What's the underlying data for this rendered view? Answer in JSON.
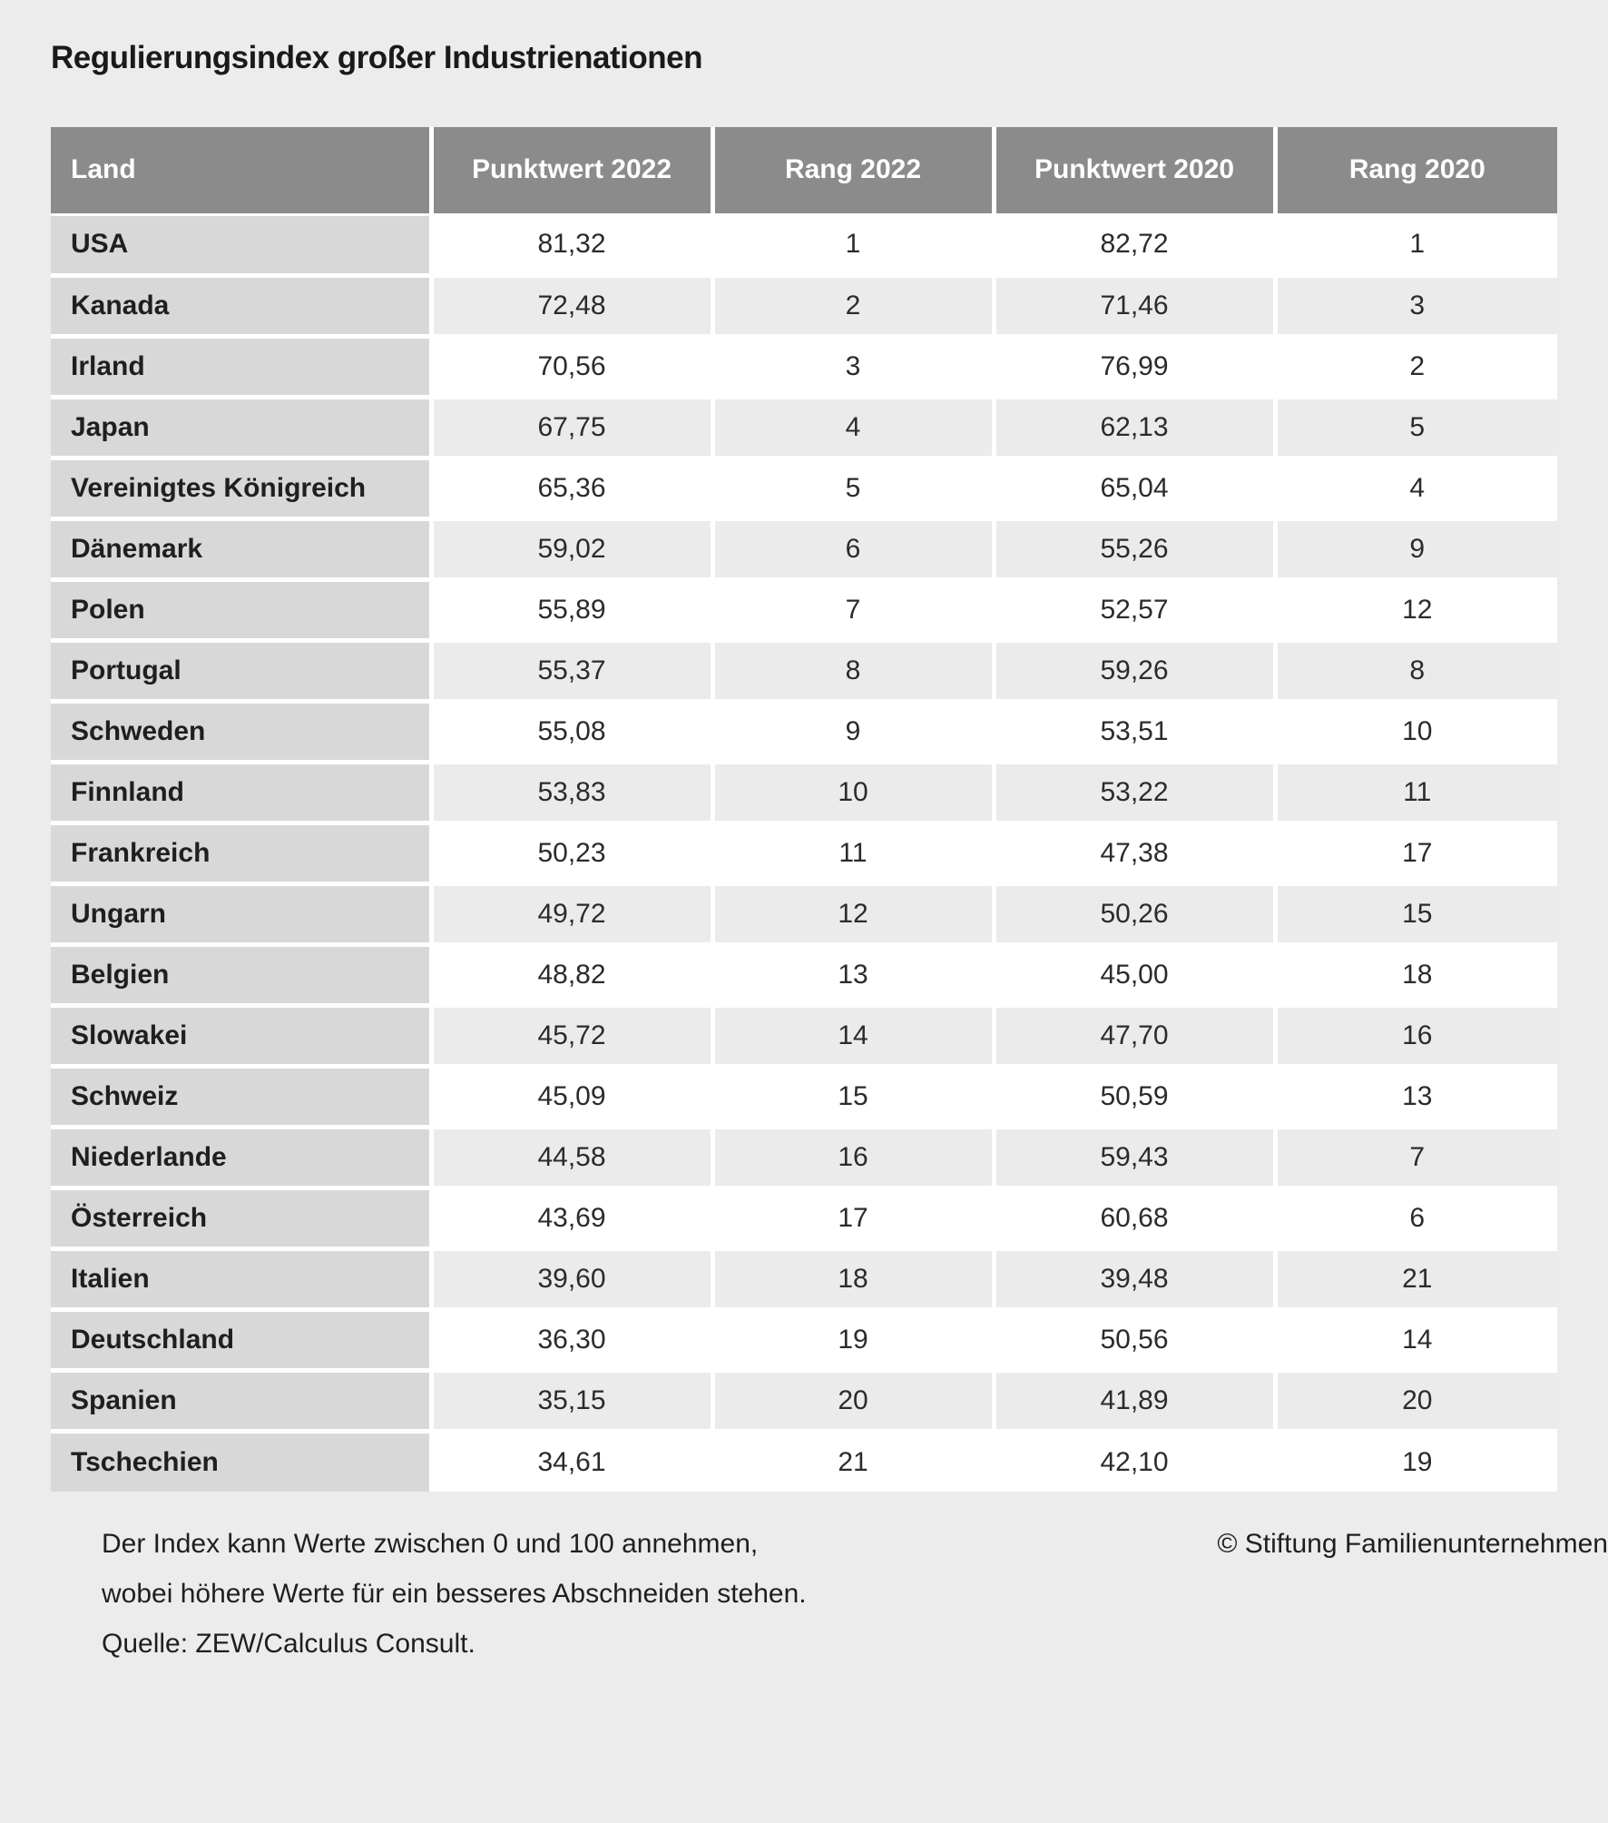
{
  "title": "Regulierungsindex großer Industrienationen",
  "chart_data": {
    "type": "table",
    "title": "Regulierungsindex großer Industrienationen",
    "columns": [
      "Land",
      "Punktwert 2022",
      "Rang 2022",
      "Punktwert 2020",
      "Rang 2020"
    ],
    "rows": [
      [
        "USA",
        "81,32",
        "1",
        "82,72",
        "1"
      ],
      [
        "Kanada",
        "72,48",
        "2",
        "71,46",
        "3"
      ],
      [
        "Irland",
        "70,56",
        "3",
        "76,99",
        "2"
      ],
      [
        "Japan",
        "67,75",
        "4",
        "62,13",
        "5"
      ],
      [
        "Vereinigtes Königreich",
        "65,36",
        "5",
        "65,04",
        "4"
      ],
      [
        "Dänemark",
        "59,02",
        "6",
        "55,26",
        "9"
      ],
      [
        "Polen",
        "55,89",
        "7",
        "52,57",
        "12"
      ],
      [
        "Portugal",
        "55,37",
        "8",
        "59,26",
        "8"
      ],
      [
        "Schweden",
        "55,08",
        "9",
        "53,51",
        "10"
      ],
      [
        "Finnland",
        "53,83",
        "10",
        "53,22",
        "11"
      ],
      [
        "Frankreich",
        "50,23",
        "11",
        "47,38",
        "17"
      ],
      [
        "Ungarn",
        "49,72",
        "12",
        "50,26",
        "15"
      ],
      [
        "Belgien",
        "48,82",
        "13",
        "45,00",
        "18"
      ],
      [
        "Slowakei",
        "45,72",
        "14",
        "47,70",
        "16"
      ],
      [
        "Schweiz",
        "45,09",
        "15",
        "50,59",
        "13"
      ],
      [
        "Niederlande",
        "44,58",
        "16",
        "59,43",
        "7"
      ],
      [
        "Österreich",
        "43,69",
        "17",
        "60,68",
        "6"
      ],
      [
        "Italien",
        "39,60",
        "18",
        "39,48",
        "21"
      ],
      [
        "Deutschland",
        "36,30",
        "19",
        "50,56",
        "14"
      ],
      [
        "Spanien",
        "35,15",
        "20",
        "41,89",
        "20"
      ],
      [
        "Tschechien",
        "34,61",
        "21",
        "42,10",
        "19"
      ]
    ],
    "value_range_note": "Index 0-100",
    "grid": false,
    "legend": "none"
  },
  "footer": {
    "note_lines": [
      "Der Index kann Werte zwischen 0 und 100 annehmen,",
      "wobei höhere Werte für ein besseres Abschneiden stehen.",
      "Quelle: ZEW/Calculus Consult."
    ],
    "copyright": "© Stiftung Familienunternehmen"
  },
  "colors": {
    "page_bg": "#ECECEC",
    "header_bg": "#8B8B8B",
    "header_text": "#FFFFFF",
    "land_cell_bg": "#D8D8D8",
    "row_odd_bg": "#FFFFFF",
    "row_even_bg": "#EBEBEB",
    "text": "#2B2B2B",
    "title_text": "#1A1A1A"
  }
}
